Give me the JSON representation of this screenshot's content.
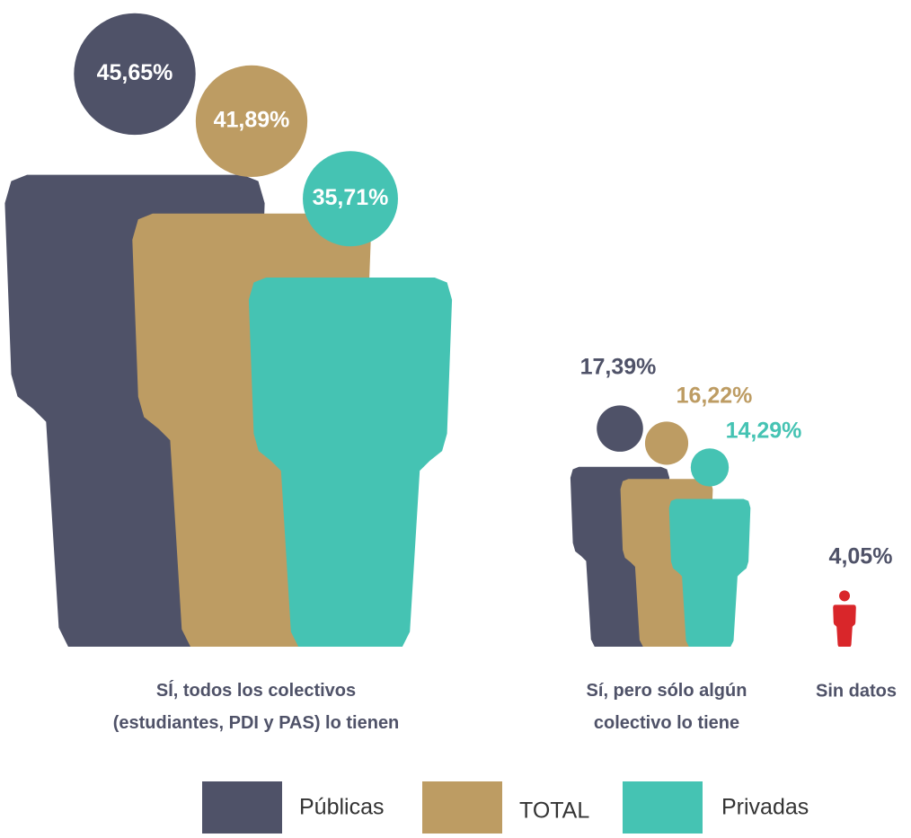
{
  "chart_data": {
    "type": "pictogram",
    "categories": [
      "SÍ, todos los colectivos\n(estudiantes, PDI y PAS) lo tienen",
      "Sí, pero sólo algún\ncolectivo lo tiene"
    ],
    "series": [
      {
        "name": "Públicas",
        "color": "#4f5268",
        "values": [
          45.65,
          17.39
        ],
        "value_labels": [
          "45,65%",
          "17,39%"
        ]
      },
      {
        "name": "TOTAL",
        "color": "#bd9c63",
        "values": [
          41.89,
          16.22
        ],
        "value_labels": [
          "41,89%",
          "16,22%"
        ]
      },
      {
        "name": "Privadas",
        "color": "#45c3b3",
        "values": [
          35.71,
          14.29
        ],
        "value_labels": [
          "35,71%",
          "14,29%"
        ]
      }
    ],
    "other": {
      "label": "Sin datos",
      "value": 4.05,
      "value_label": "4,05%",
      "color": "#d9262a"
    }
  }
}
